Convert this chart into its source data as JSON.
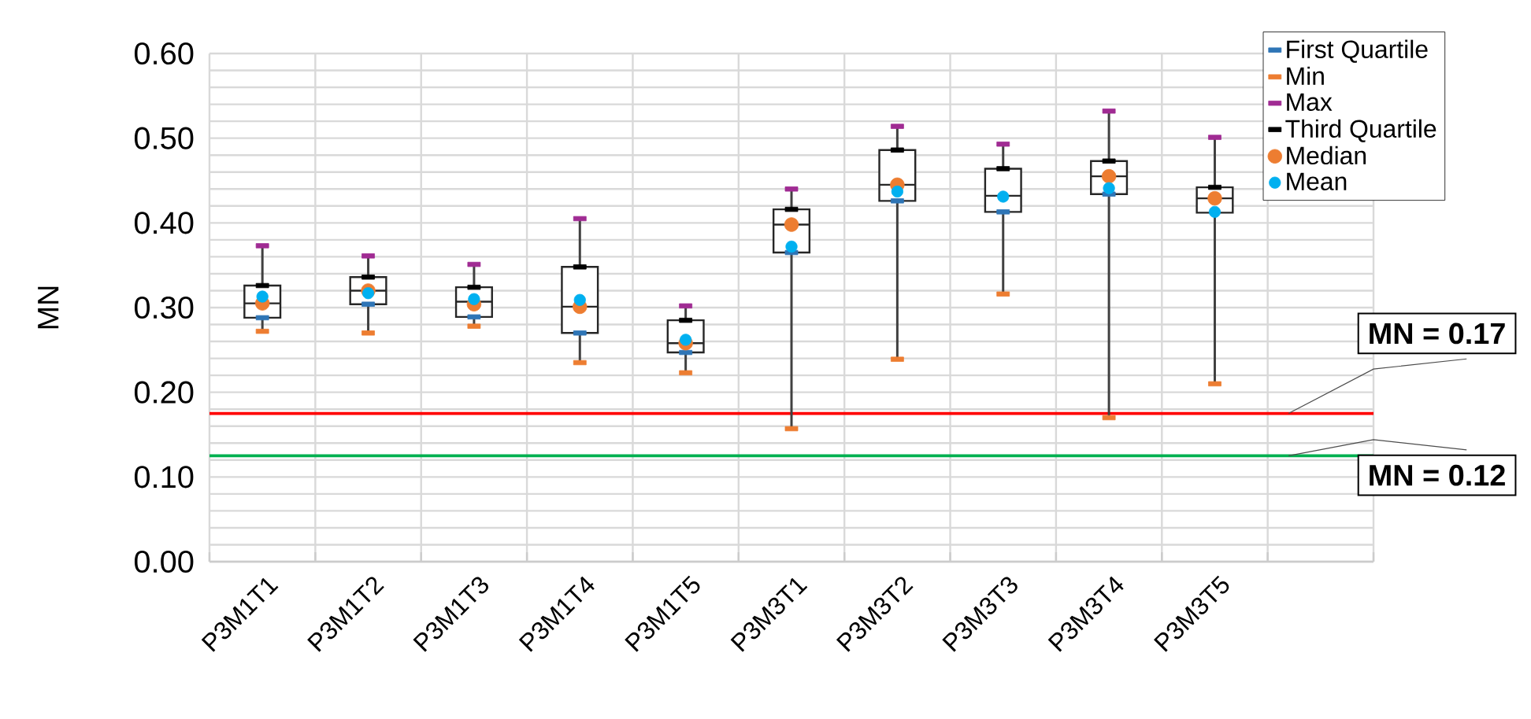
{
  "chart_data": {
    "type": "box",
    "ylabel": "MN",
    "categories": [
      "P3M1T1",
      "P3M1T2",
      "P3M1T3",
      "P3M1T4",
      "P3M1T5",
      "P3M3T1",
      "P3M3T2",
      "P3M3T3",
      "P3M3T4",
      "P3M3T5",
      null
    ],
    "ylim": [
      0,
      0.6
    ],
    "yticks": [
      {
        "value": 0,
        "label": "0.00"
      },
      {
        "value": 0.1,
        "label": "0.10"
      },
      {
        "value": 0.2,
        "label": "0.20"
      },
      {
        "value": 0.3,
        "label": "0.30"
      },
      {
        "value": 0.4,
        "label": "0.40"
      },
      {
        "value": 0.5,
        "label": "0.50"
      },
      {
        "value": 0.6,
        "label": "0.60"
      }
    ],
    "grid": true,
    "legend": "top right",
    "boxes": [
      {
        "low": 0.272,
        "q1": 0.288,
        "median": 0.305,
        "q3": 0.326,
        "high": 0.373
      },
      {
        "low": 0.27,
        "q1": 0.304,
        "median": 0.32,
        "q3": 0.336,
        "high": 0.361
      },
      {
        "low": 0.278,
        "q1": 0.289,
        "median": 0.307,
        "q3": 0.324,
        "high": 0.351
      },
      {
        "low": 0.235,
        "q1": 0.27,
        "median": 0.301,
        "q3": 0.348,
        "high": 0.405
      },
      {
        "low": 0.223,
        "q1": 0.247,
        "median": 0.258,
        "q3": 0.285,
        "high": 0.302
      },
      {
        "low": 0.157,
        "q1": 0.365,
        "median": 0.398,
        "q3": 0.416,
        "high": 0.44
      },
      {
        "low": 0.239,
        "q1": 0.426,
        "median": 0.445,
        "q3": 0.486,
        "high": 0.514
      },
      {
        "low": 0.316,
        "q1": 0.413,
        "median": 0.432,
        "q3": 0.464,
        "high": 0.493
      },
      {
        "low": 0.17,
        "q1": 0.434,
        "median": 0.455,
        "q3": 0.473,
        "high": 0.532
      },
      {
        "low": 0.21,
        "q1": 0.412,
        "median": 0.429,
        "q3": 0.442,
        "high": 0.501
      },
      null
    ],
    "series": [
      {
        "name": "First Quartile",
        "type": "scatter",
        "marker": "square",
        "color": "#2e75b6",
        "values": [
          0.288,
          0.304,
          0.289,
          0.27,
          0.247,
          0.365,
          0.426,
          0.413,
          0.434,
          null,
          null
        ]
      },
      {
        "name": "Min",
        "type": "scatter",
        "marker": "square",
        "color": "#ed7d31",
        "values": [
          0.272,
          0.27,
          0.278,
          0.235,
          0.223,
          0.157,
          0.239,
          0.316,
          0.17,
          0.21,
          null
        ]
      },
      {
        "name": "Max",
        "type": "scatter",
        "marker": "square",
        "color": "#a02b93",
        "values": [
          0.373,
          0.361,
          0.351,
          0.405,
          0.302,
          0.44,
          0.514,
          0.493,
          0.532,
          0.501,
          null
        ]
      },
      {
        "name": "Third Quartile",
        "type": "scatter",
        "marker": "square",
        "color": "#000000",
        "values": [
          0.326,
          0.336,
          0.324,
          0.348,
          0.285,
          0.416,
          0.486,
          0.464,
          0.473,
          0.442,
          null
        ]
      },
      {
        "name": "Median",
        "type": "scatter",
        "marker": "circle",
        "color": "#ed7d31",
        "values": [
          0.305,
          0.32,
          0.304,
          0.301,
          0.258,
          0.398,
          0.445,
          null,
          0.455,
          0.429,
          null
        ]
      },
      {
        "name": "Mean",
        "type": "scatter",
        "marker": "circle",
        "color": "#00b0f0",
        "values": [
          0.313,
          0.317,
          0.31,
          0.309,
          0.262,
          0.372,
          0.437,
          0.431,
          0.441,
          0.413,
          null
        ]
      }
    ],
    "ref_lines": [
      {
        "axis": "y",
        "value": 0.175,
        "label": "MN = 0.17",
        "color": "#ff0000"
      },
      {
        "axis": "y",
        "value": 0.125,
        "label": "MN = 0.12",
        "color": "#00b050"
      }
    ]
  }
}
